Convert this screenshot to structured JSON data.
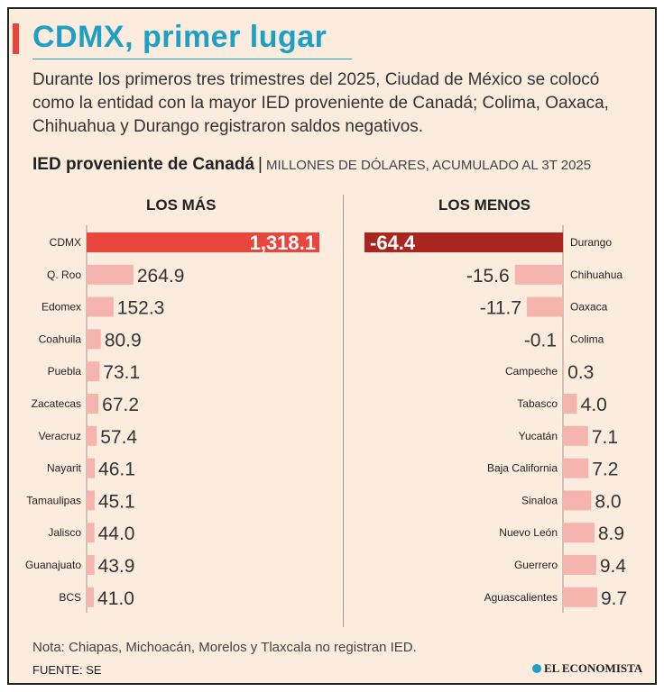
{
  "title": "CDMX, primer lugar",
  "subtitle": "Durante los primeros tres trimestres del 2025, Ciudad de México se colocó como la entidad con la mayor IED proveniente de Canadá; Colima, Oaxaca, Chihuahua y Durango registraron saldos negativos.",
  "chart_heading": {
    "main": "IED proveniente de Canadá",
    "separator": "|",
    "sub": "MILLONES DE DÓLARES, ACUMULADO AL 3T 2025"
  },
  "chart_data": [
    {
      "type": "bar",
      "title": "LOS MÁS",
      "orientation": "horizontal",
      "categories": [
        "CDMX",
        "Q. Roo",
        "Edomex",
        "Coahuila",
        "Puebla",
        "Zacatecas",
        "Veracruz",
        "Nayarit",
        "Tamaulipas",
        "Jalisco",
        "Guanajuato",
        "BCS"
      ],
      "values": [
        1318.1,
        264.9,
        152.3,
        80.9,
        73.1,
        67.2,
        57.4,
        46.1,
        45.1,
        44.0,
        43.9,
        41.0
      ],
      "labels": [
        "1,318.1",
        "264.9",
        "152.3",
        "80.9",
        "73.1",
        "67.2",
        "57.4",
        "46.1",
        "45.1",
        "44.0",
        "43.9",
        "41.0"
      ],
      "highlight": "CDMX"
    },
    {
      "type": "bar",
      "title": "LOS MENOS",
      "orientation": "horizontal",
      "categories": [
        "Durango",
        "Chihuahua",
        "Oaxaca",
        "Colima",
        "Campeche",
        "Tabasco",
        "Yucatán",
        "Baja California",
        "Sinaloa",
        "Nuevo León",
        "Guerrero",
        "Aguascalientes"
      ],
      "values": [
        -64.4,
        -15.6,
        -11.7,
        -0.1,
        0.3,
        4.0,
        7.1,
        7.2,
        8.0,
        8.9,
        9.4,
        9.7
      ],
      "labels": [
        "-64.4",
        "-15.6",
        "-11.7",
        "-0.1",
        "0.3",
        "4.0",
        "7.1",
        "7.2",
        "8.0",
        "8.9",
        "9.4",
        "9.7"
      ],
      "highlight": "Durango"
    }
  ],
  "note": "Nota: Chiapas, Michoacán, Morelos y Tlaxcala no registran IED.",
  "source": "FUENTE: SE",
  "brand": "EL ECONOMISTA",
  "colors": {
    "title": "#1f9fc4",
    "bar": "#f5b5ae",
    "highlight_top": "#e8463d",
    "highlight_bottom": "#a9261f",
    "background": "#fcecde"
  }
}
